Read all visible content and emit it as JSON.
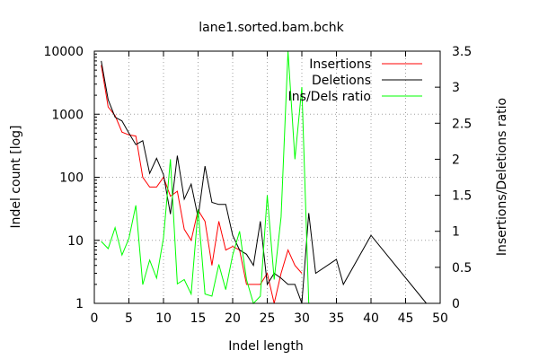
{
  "chart_data": {
    "type": "line",
    "title": "lane1.sorted.bam.bchk",
    "xlabel": "Indel length",
    "ylabel": "Indel count [log]",
    "y2label": "Insertions/Deletions ratio",
    "xlim": [
      0,
      50
    ],
    "ylim": [
      1,
      10000
    ],
    "yscale": "log",
    "y2lim": [
      0,
      3.5
    ],
    "x_ticks": [
      "0",
      "5",
      "10",
      "15",
      "20",
      "25",
      "30",
      "35",
      "40",
      "45",
      "50"
    ],
    "y_ticks": [
      "1",
      "10",
      "100",
      "1000",
      "10000"
    ],
    "y2_ticks": [
      "0",
      "0.5",
      "1",
      "1.5",
      "2",
      "2.5",
      "3",
      "3.5"
    ],
    "grid": true,
    "legend_position": "top-right",
    "series": [
      {
        "name": "Insertions",
        "color": "#ff0000",
        "axis": "left",
        "points": [
          [
            1,
            6000
          ],
          [
            2,
            1300
          ],
          [
            3,
            950
          ],
          [
            4,
            520
          ],
          [
            5,
            470
          ],
          [
            6,
            450
          ],
          [
            7,
            100
          ],
          [
            8,
            70
          ],
          [
            9,
            70
          ],
          [
            10,
            100
          ],
          [
            11,
            50
          ],
          [
            12,
            60
          ],
          [
            13,
            15
          ],
          [
            14,
            10
          ],
          [
            15,
            30
          ],
          [
            16,
            20
          ],
          [
            17,
            4
          ],
          [
            18,
            20
          ],
          [
            19,
            7
          ],
          [
            20,
            8
          ],
          [
            21,
            7
          ],
          [
            22,
            2
          ],
          [
            24,
            2
          ],
          [
            25,
            3
          ],
          [
            26,
            1
          ],
          [
            27,
            3
          ],
          [
            28,
            7
          ],
          [
            29,
            4
          ],
          [
            30,
            3
          ]
        ]
      },
      {
        "name": "Deletions",
        "color": "#000000",
        "axis": "left",
        "points": [
          [
            1,
            7000
          ],
          [
            2,
            1700
          ],
          [
            3,
            900
          ],
          [
            4,
            780
          ],
          [
            5,
            500
          ],
          [
            6,
            330
          ],
          [
            7,
            380
          ],
          [
            8,
            115
          ],
          [
            9,
            200
          ],
          [
            10,
            110
          ],
          [
            11,
            26
          ],
          [
            12,
            220
          ],
          [
            13,
            45
          ],
          [
            14,
            78
          ],
          [
            15,
            23
          ],
          [
            16,
            150
          ],
          [
            17,
            40
          ],
          [
            18,
            37
          ],
          [
            19,
            37
          ],
          [
            20,
            12
          ],
          [
            21,
            7
          ],
          [
            22,
            6
          ],
          [
            23,
            4
          ],
          [
            24,
            20
          ],
          [
            25,
            2
          ],
          [
            26,
            3
          ],
          [
            27,
            2.5
          ],
          [
            28,
            2
          ],
          [
            29,
            2
          ],
          [
            30,
            1
          ],
          [
            31,
            27
          ],
          [
            32,
            3
          ],
          [
            35,
            5
          ],
          [
            36,
            2
          ],
          [
            40,
            12
          ],
          [
            48,
            1
          ]
        ]
      },
      {
        "name": "Ins/Dels ratio",
        "color": "#00ff00",
        "axis": "right",
        "points": [
          [
            1,
            0.86
          ],
          [
            2,
            0.76
          ],
          [
            3,
            1.05
          ],
          [
            4,
            0.67
          ],
          [
            5,
            0.9
          ],
          [
            6,
            1.36
          ],
          [
            7,
            0.26
          ],
          [
            8,
            0.6
          ],
          [
            9,
            0.35
          ],
          [
            10,
            0.91
          ],
          [
            11,
            2.0
          ],
          [
            12,
            0.27
          ],
          [
            13,
            0.33
          ],
          [
            14,
            0.13
          ],
          [
            15,
            1.3
          ],
          [
            16,
            0.13
          ],
          [
            17,
            0.1
          ],
          [
            18,
            0.54
          ],
          [
            19,
            0.19
          ],
          [
            20,
            0.67
          ],
          [
            21,
            1.0
          ],
          [
            22,
            0.33
          ],
          [
            23,
            0.0
          ],
          [
            24,
            0.1
          ],
          [
            25,
            1.5
          ],
          [
            26,
            0.33
          ],
          [
            27,
            1.2
          ],
          [
            28,
            3.5
          ],
          [
            29,
            2.0
          ],
          [
            30,
            3.0
          ],
          [
            31,
            0.0
          ]
        ]
      }
    ]
  }
}
